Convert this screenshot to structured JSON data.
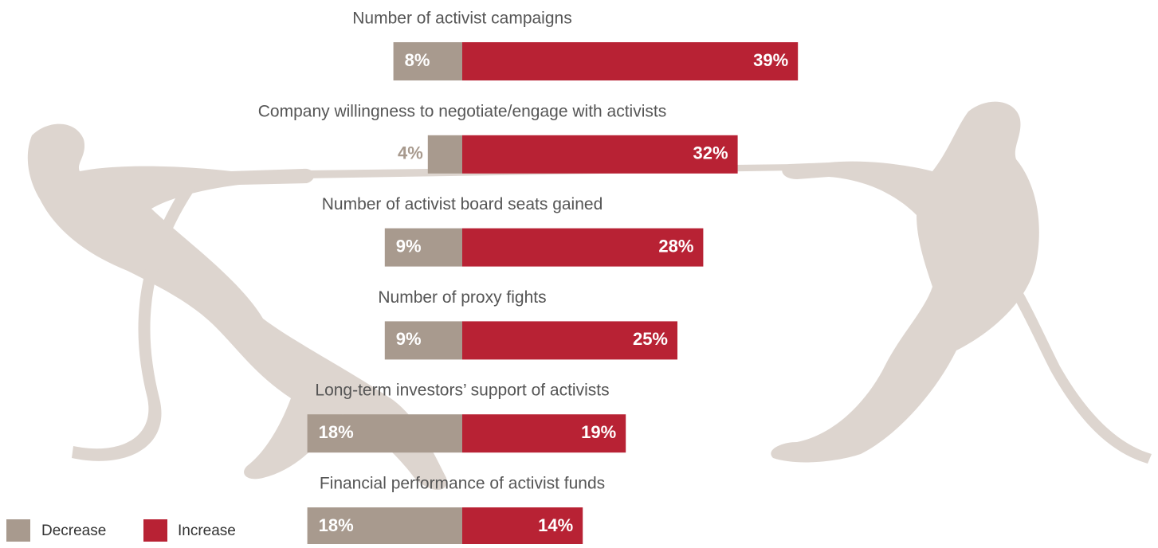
{
  "chart_data": {
    "type": "diverging_bar",
    "categories": [
      "Number of activist campaigns",
      "Company willingness to negotiate/engage with activists",
      "Number of activist board seats gained",
      "Number of proxy fights",
      "Long-term investors’ support of activists",
      "Financial performance of activist funds"
    ],
    "series": [
      {
        "name": "Decrease",
        "color": "#a89a8e",
        "values": [
          8,
          4,
          9,
          9,
          18,
          18
        ],
        "value_labels": [
          "8%",
          "4%",
          "9%",
          "9%",
          "18%",
          "18%"
        ]
      },
      {
        "name": "Increase",
        "color": "#b82234",
        "values": [
          39,
          32,
          28,
          25,
          19,
          14
        ],
        "value_labels": [
          "39%",
          "32%",
          "28%",
          "25%",
          "19%",
          "14%"
        ]
      }
    ]
  }
}
